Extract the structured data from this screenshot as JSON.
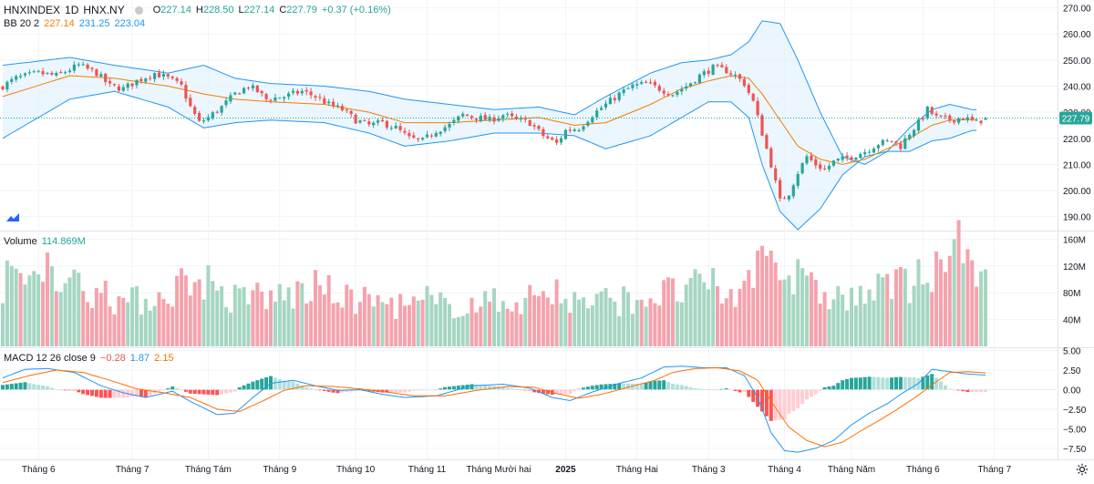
{
  "header": {
    "symbol": "HNXINDEX",
    "interval": "1D",
    "exchange": "HNX.NY",
    "ohlc": {
      "o_label": "O",
      "o": "227.14",
      "h_label": "H",
      "h": "228.50",
      "l_label": "L",
      "l": "227.14",
      "c_label": "C",
      "c": "227.79",
      "change": "+0.37 (+0.16%)"
    }
  },
  "indicators": {
    "bb": {
      "label": "BB 20 2",
      "basis": "227.14",
      "upper": "231.25",
      "lower": "223.04"
    },
    "volume": {
      "label": "Volume",
      "value": "114.869M"
    },
    "macd": {
      "label": "MACD 12 26 close 9",
      "hist": "−0.28",
      "macd": "1.87",
      "signal": "2.15"
    }
  },
  "last_price_tag": "227.79",
  "colors": {
    "up": "#26a69a",
    "down": "#ef5350",
    "up_vol": "#a5d6c1",
    "down_vol": "#f4a3ad",
    "bb_basis": "#f57c00",
    "bb_band": "#2196f3",
    "bb_fill": "#e3f2fd",
    "macd_line": "#2196f3",
    "signal_line": "#ff6d00",
    "hist_up_strong": "#26a69a",
    "hist_up_weak": "#b2dfdb",
    "hist_down_strong": "#ff5252",
    "hist_down_weak": "#ffcdd2",
    "ohlc_value": "#26a69a"
  },
  "axes": {
    "price_ticks": [
      "270.00",
      "260.00",
      "250.00",
      "240.00",
      "230.00",
      "220.00",
      "210.00",
      "200.00",
      "190.00"
    ],
    "volume_ticks": [
      "160M",
      "120M",
      "80M",
      "40M"
    ],
    "macd_ticks": [
      "5.00",
      "2.50",
      "0.00",
      "−2.50",
      "−5.00",
      "−7.50"
    ],
    "time_labels": [
      "Tháng 6",
      "Tháng 7",
      "Tháng Tám",
      "Tháng 9",
      "Tháng 10",
      "Tháng 11",
      "Tháng Mười hai",
      "2025",
      "Tháng Hai",
      "Tháng 3",
      "Tháng 4",
      "Tháng Năm",
      "Tháng 6",
      "Tháng 7"
    ]
  },
  "chart_data": [
    {
      "type": "candlestick",
      "title": "HNXINDEX 1D HNX.NY",
      "ylim": [
        185,
        273
      ],
      "x_labels": [
        "Tháng 6",
        "Tháng 7",
        "Tháng Tám",
        "Tháng 9",
        "Tháng 10",
        "Tháng 11",
        "Tháng Mười hai",
        "2025",
        "Tháng Hai",
        "Tháng 3",
        "Tháng 4",
        "Tháng Năm",
        "Tháng 6",
        "Tháng 7"
      ],
      "close_path": [
        [
          0,
          240
        ],
        [
          3,
          243
        ],
        [
          8,
          245
        ],
        [
          12,
          244
        ],
        [
          17,
          248
        ],
        [
          21,
          245
        ],
        [
          24,
          240
        ],
        [
          27,
          239
        ],
        [
          30,
          242
        ],
        [
          34,
          245
        ],
        [
          37,
          243
        ],
        [
          40,
          240
        ],
        [
          42,
          232
        ],
        [
          44,
          226
        ],
        [
          46,
          228
        ],
        [
          49,
          232
        ],
        [
          52,
          237
        ],
        [
          55,
          240
        ],
        [
          57,
          238
        ],
        [
          59,
          235
        ],
        [
          63,
          236
        ],
        [
          67,
          238
        ],
        [
          70,
          236
        ],
        [
          73,
          233
        ],
        [
          76,
          231
        ],
        [
          79,
          227
        ],
        [
          82,
          225
        ],
        [
          85,
          226
        ],
        [
          88,
          224
        ],
        [
          91,
          220
        ],
        [
          94,
          219
        ],
        [
          97,
          223
        ],
        [
          100,
          225
        ],
        [
          103,
          229
        ],
        [
          106,
          228
        ],
        [
          109,
          227
        ],
        [
          112,
          229
        ],
        [
          115,
          227
        ],
        [
          118,
          226
        ],
        [
          121,
          221
        ],
        [
          124,
          218
        ],
        [
          126,
          223
        ],
        [
          129,
          224
        ],
        [
          132,
          229
        ],
        [
          135,
          233
        ],
        [
          138,
          237
        ],
        [
          141,
          240
        ],
        [
          144,
          241
        ],
        [
          147,
          239
        ],
        [
          150,
          237
        ],
        [
          153,
          240
        ],
        [
          156,
          244
        ],
        [
          159,
          247
        ],
        [
          162,
          246
        ],
        [
          164,
          244
        ],
        [
          166,
          241
        ],
        [
          168,
          234
        ],
        [
          170,
          222
        ],
        [
          172,
          210
        ],
        [
          174,
          196
        ],
        [
          176,
          199
        ],
        [
          178,
          207
        ],
        [
          180,
          213
        ],
        [
          182,
          210
        ],
        [
          184,
          208
        ],
        [
          186,
          211
        ],
        [
          188,
          212
        ],
        [
          190,
          213
        ],
        [
          193,
          215
        ],
        [
          196,
          218
        ],
        [
          199,
          219
        ],
        [
          201,
          217
        ],
        [
          203,
          222
        ],
        [
          205,
          226
        ],
        [
          207,
          231
        ],
        [
          209,
          228
        ],
        [
          212,
          227
        ],
        [
          215,
          228
        ],
        [
          218,
          226
        ],
        [
          220,
          227.79
        ]
      ],
      "bb_upper_path": [
        [
          0,
          248
        ],
        [
          15,
          251
        ],
        [
          25,
          248
        ],
        [
          37,
          245
        ],
        [
          45,
          248
        ],
        [
          52,
          243
        ],
        [
          60,
          241
        ],
        [
          72,
          240
        ],
        [
          82,
          238
        ],
        [
          90,
          235
        ],
        [
          100,
          233
        ],
        [
          110,
          231
        ],
        [
          120,
          232
        ],
        [
          128,
          229
        ],
        [
          135,
          236
        ],
        [
          145,
          245
        ],
        [
          152,
          249
        ],
        [
          158,
          250
        ],
        [
          163,
          252
        ],
        [
          167,
          257
        ],
        [
          170,
          265
        ],
        [
          174,
          264
        ],
        [
          178,
          250
        ],
        [
          183,
          230
        ],
        [
          188,
          213
        ],
        [
          193,
          210
        ],
        [
          198,
          215
        ],
        [
          203,
          224
        ],
        [
          208,
          231
        ],
        [
          212,
          233
        ],
        [
          217,
          231
        ]
      ],
      "bb_basis_path": [
        [
          0,
          236
        ],
        [
          15,
          244
        ],
        [
          25,
          243
        ],
        [
          37,
          240
        ],
        [
          45,
          237
        ],
        [
          52,
          235
        ],
        [
          60,
          234
        ],
        [
          72,
          233
        ],
        [
          82,
          230
        ],
        [
          90,
          226
        ],
        [
          100,
          226
        ],
        [
          110,
          227
        ],
        [
          120,
          228
        ],
        [
          128,
          225
        ],
        [
          135,
          226
        ],
        [
          145,
          233
        ],
        [
          152,
          239
        ],
        [
          158,
          242
        ],
        [
          163,
          244
        ],
        [
          167,
          243
        ],
        [
          170,
          237
        ],
        [
          174,
          227
        ],
        [
          178,
          217
        ],
        [
          183,
          212
        ],
        [
          188,
          210
        ],
        [
          193,
          212
        ],
        [
          198,
          216
        ],
        [
          203,
          220
        ],
        [
          208,
          225
        ],
        [
          212,
          227
        ],
        [
          217,
          227.14
        ]
      ],
      "bb_lower_path": [
        [
          0,
          220
        ],
        [
          15,
          235
        ],
        [
          25,
          238
        ],
        [
          37,
          232
        ],
        [
          45,
          224
        ],
        [
          52,
          226
        ],
        [
          60,
          227
        ],
        [
          72,
          226
        ],
        [
          82,
          222
        ],
        [
          90,
          217
        ],
        [
          100,
          219
        ],
        [
          110,
          222
        ],
        [
          120,
          222
        ],
        [
          128,
          221
        ],
        [
          135,
          216
        ],
        [
          145,
          221
        ],
        [
          152,
          228
        ],
        [
          158,
          234
        ],
        [
          163,
          234
        ],
        [
          167,
          228
        ],
        [
          170,
          210
        ],
        [
          174,
          192
        ],
        [
          178,
          185
        ],
        [
          183,
          193
        ],
        [
          188,
          206
        ],
        [
          193,
          213
        ],
        [
          198,
          215
        ],
        [
          203,
          215
        ],
        [
          208,
          219
        ],
        [
          212,
          220
        ],
        [
          217,
          223.04
        ]
      ],
      "last_close": 227.79
    },
    {
      "type": "bar",
      "title": "Volume",
      "ylim": [
        0,
        170
      ],
      "unit": "M",
      "profile_path": [
        [
          0,
          95
        ],
        [
          10,
          110
        ],
        [
          20,
          80
        ],
        [
          28,
          65
        ],
        [
          35,
          75
        ],
        [
          44,
          110
        ],
        [
          50,
          70
        ],
        [
          60,
          72
        ],
        [
          70,
          85
        ],
        [
          80,
          70
        ],
        [
          90,
          60
        ],
        [
          100,
          62
        ],
        [
          110,
          65
        ],
        [
          120,
          75
        ],
        [
          130,
          65
        ],
        [
          140,
          70
        ],
        [
          150,
          80
        ],
        [
          158,
          90
        ],
        [
          165,
          70
        ],
        [
          170,
          150
        ],
        [
          175,
          110
        ],
        [
          180,
          85
        ],
        [
          190,
          70
        ],
        [
          200,
          90
        ],
        [
          208,
          100
        ],
        [
          214,
          140
        ],
        [
          218,
          95
        ],
        [
          220,
          114.869
        ]
      ],
      "spikes": [
        [
          10,
          140
        ],
        [
          23,
          98
        ],
        [
          44,
          100
        ],
        [
          57,
          95
        ],
        [
          78,
          85
        ],
        [
          95,
          90
        ],
        [
          124,
          100
        ],
        [
          170,
          150
        ],
        [
          171,
          135
        ],
        [
          173,
          125
        ],
        [
          178,
          130
        ],
        [
          200,
          115
        ],
        [
          205,
          130
        ],
        [
          212,
          135
        ],
        [
          213,
          160
        ],
        [
          216,
          145
        ],
        [
          220,
          114.869
        ]
      ],
      "last_value": 114.869
    },
    {
      "type": "line",
      "title": "MACD 12 26 close 9",
      "ylim": [
        -8.8,
        5.3
      ],
      "macd_path": [
        [
          0,
          1.5
        ],
        [
          5,
          2.6
        ],
        [
          10,
          2.7
        ],
        [
          16,
          2.2
        ],
        [
          22,
          0.5
        ],
        [
          27,
          -0.4
        ],
        [
          32,
          -1.0
        ],
        [
          38,
          -0.2
        ],
        [
          42,
          -1.5
        ],
        [
          48,
          -3.2
        ],
        [
          52,
          -3.0
        ],
        [
          56,
          -1.0
        ],
        [
          60,
          0.8
        ],
        [
          65,
          1.2
        ],
        [
          70,
          0.5
        ],
        [
          75,
          -0.1
        ],
        [
          80,
          0.0
        ],
        [
          85,
          -0.6
        ],
        [
          90,
          -1.0
        ],
        [
          97,
          -0.8
        ],
        [
          105,
          0.5
        ],
        [
          112,
          0.7
        ],
        [
          118,
          0.2
        ],
        [
          123,
          -1.0
        ],
        [
          127,
          -1.4
        ],
        [
          132,
          -0.3
        ],
        [
          138,
          0.8
        ],
        [
          143,
          1.5
        ],
        [
          148,
          2.9
        ],
        [
          152,
          3.0
        ],
        [
          157,
          2.8
        ],
        [
          162,
          2.8
        ],
        [
          166,
          1.8
        ],
        [
          169,
          -1.0
        ],
        [
          172,
          -5.5
        ],
        [
          175,
          -7.8
        ],
        [
          178,
          -8.0
        ],
        [
          182,
          -7.5
        ],
        [
          186,
          -6.5
        ],
        [
          190,
          -4.5
        ],
        [
          194,
          -3.0
        ],
        [
          198,
          -1.8
        ],
        [
          201,
          -0.6
        ],
        [
          205,
          0.8
        ],
        [
          208,
          2.6
        ],
        [
          212,
          2.3
        ],
        [
          216,
          2.0
        ],
        [
          220,
          1.87
        ]
      ],
      "signal_path": [
        [
          0,
          0.9
        ],
        [
          6,
          1.8
        ],
        [
          12,
          2.5
        ],
        [
          18,
          2.2
        ],
        [
          24,
          1.2
        ],
        [
          30,
          0.1
        ],
        [
          36,
          -0.4
        ],
        [
          42,
          -1.0
        ],
        [
          48,
          -2.5
        ],
        [
          53,
          -2.8
        ],
        [
          58,
          -1.5
        ],
        [
          63,
          -0.1
        ],
        [
          68,
          0.5
        ],
        [
          74,
          0.4
        ],
        [
          80,
          0.1
        ],
        [
          86,
          -0.3
        ],
        [
          92,
          -0.8
        ],
        [
          99,
          -0.8
        ],
        [
          106,
          -0.1
        ],
        [
          113,
          0.4
        ],
        [
          119,
          0.3
        ],
        [
          124,
          -0.5
        ],
        [
          129,
          -1.1
        ],
        [
          134,
          -0.6
        ],
        [
          140,
          0.3
        ],
        [
          146,
          1.2
        ],
        [
          150,
          2.2
        ],
        [
          155,
          2.7
        ],
        [
          160,
          2.8
        ],
        [
          165,
          2.4
        ],
        [
          169,
          1.2
        ],
        [
          172,
          -1.5
        ],
        [
          176,
          -4.8
        ],
        [
          180,
          -6.5
        ],
        [
          184,
          -7.3
        ],
        [
          188,
          -6.7
        ],
        [
          192,
          -5.3
        ],
        [
          196,
          -4.0
        ],
        [
          200,
          -2.6
        ],
        [
          204,
          -1.1
        ],
        [
          208,
          0.6
        ],
        [
          212,
          2.2
        ],
        [
          216,
          2.3
        ],
        [
          220,
          2.15
        ]
      ],
      "last_values": {
        "hist": -0.28,
        "macd": 1.87,
        "signal": 2.15
      }
    }
  ]
}
